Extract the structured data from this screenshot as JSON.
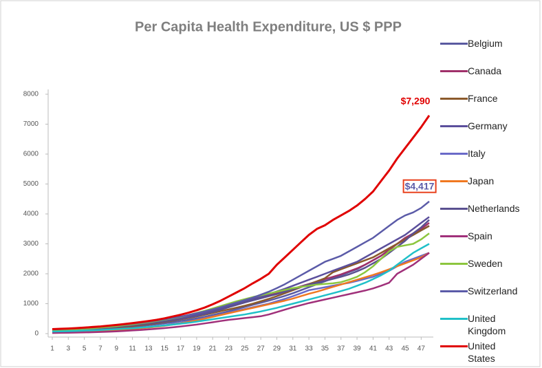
{
  "chart_data": {
    "type": "line",
    "title": "Per Capita Health Expenditure, US $ PPP",
    "x": [
      1,
      2,
      3,
      4,
      5,
      6,
      7,
      8,
      9,
      10,
      11,
      12,
      13,
      14,
      15,
      16,
      17,
      18,
      19,
      20,
      21,
      22,
      23,
      24,
      25,
      26,
      27,
      28,
      29,
      30,
      31,
      32,
      33,
      34,
      35,
      36,
      37,
      38,
      39,
      40,
      41,
      42,
      43,
      44,
      45,
      46,
      47,
      48
    ],
    "xlim": [
      1,
      48
    ],
    "xticks": [
      1,
      3,
      5,
      7,
      9,
      11,
      13,
      15,
      17,
      19,
      21,
      23,
      25,
      27,
      29,
      31,
      33,
      35,
      37,
      39,
      41,
      43,
      45,
      47
    ],
    "ylim": [
      0,
      8000
    ],
    "yticks": [
      0,
      1000,
      2000,
      3000,
      4000,
      5000,
      6000,
      7000,
      8000
    ],
    "grid": false,
    "legend": "right",
    "series": [
      {
        "name": "Belgium",
        "color": "#5a5aa0",
        "values": [
          60,
          70,
          80,
          90,
          105,
          120,
          135,
          155,
          175,
          200,
          225,
          250,
          280,
          310,
          345,
          380,
          420,
          460,
          510,
          560,
          620,
          680,
          750,
          820,
          890,
          960,
          1030,
          1100,
          1180,
          1260,
          1350,
          1450,
          1550,
          1650,
          1750,
          1850,
          1950,
          2050,
          2150,
          2300,
          2450,
          2600,
          2800,
          3000,
          3150,
          3300,
          3450,
          3600
        ]
      },
      {
        "name": "Canada",
        "color": "#a0306a",
        "values": [
          100,
          110,
          120,
          135,
          150,
          170,
          190,
          210,
          235,
          260,
          290,
          320,
          355,
          390,
          430,
          470,
          520,
          570,
          630,
          690,
          760,
          840,
          920,
          1000,
          1080,
          1150,
          1220,
          1290,
          1360,
          1430,
          1500,
          1580,
          1660,
          1740,
          1820,
          1900,
          1980,
          2080,
          2180,
          2300,
          2450,
          2600,
          2800,
          3000,
          3200,
          3350,
          3500,
          3700
        ]
      },
      {
        "name": "France",
        "color": "#8b5a2b",
        "values": [
          70,
          80,
          90,
          100,
          115,
          130,
          150,
          170,
          195,
          220,
          250,
          280,
          315,
          350,
          390,
          430,
          475,
          520,
          570,
          630,
          690,
          750,
          810,
          870,
          930,
          1000,
          1080,
          1160,
          1250,
          1350,
          1450,
          1550,
          1650,
          1750,
          1850,
          2050,
          2150,
          2250,
          2350,
          2450,
          2550,
          2700,
          2850,
          3000,
          3150,
          3300,
          3450,
          3600
        ]
      },
      {
        "name": "Germany",
        "color": "#5b4f9c",
        "values": [
          80,
          90,
          100,
          115,
          130,
          150,
          170,
          195,
          220,
          250,
          280,
          310,
          345,
          380,
          420,
          465,
          510,
          560,
          620,
          680,
          750,
          830,
          910,
          990,
          1070,
          1150,
          1230,
          1320,
          1410,
          1500,
          1600,
          1700,
          1800,
          1900,
          2000,
          2100,
          2200,
          2300,
          2400,
          2550,
          2700,
          2850,
          3000,
          3150,
          3300,
          3500,
          3700,
          3900
        ]
      },
      {
        "name": "Italy",
        "color": "#6a6ac8",
        "values": [
          50,
          55,
          60,
          70,
          80,
          90,
          100,
          115,
          130,
          150,
          170,
          195,
          220,
          250,
          280,
          320,
          360,
          410,
          460,
          520,
          580,
          640,
          700,
          760,
          820,
          880,
          940,
          1000,
          1080,
          1160,
          1250,
          1350,
          1450,
          1500,
          1550,
          1600,
          1650,
          1700,
          1760,
          1830,
          1900,
          2000,
          2100,
          2250,
          2400,
          2500,
          2600,
          2700
        ]
      },
      {
        "name": "Japan",
        "color": "#f07820",
        "values": [
          30,
          35,
          40,
          45,
          55,
          65,
          75,
          90,
          110,
          130,
          150,
          175,
          200,
          230,
          260,
          300,
          340,
          390,
          440,
          500,
          560,
          620,
          680,
          740,
          800,
          860,
          920,
          980,
          1040,
          1100,
          1170,
          1250,
          1330,
          1400,
          1480,
          1560,
          1640,
          1720,
          1800,
          1880,
          1960,
          2050,
          2150,
          2250,
          2350,
          2450,
          2550,
          2700
        ]
      },
      {
        "name": "Netherlands",
        "color": "#5a5090",
        "values": [
          90,
          100,
          110,
          125,
          140,
          160,
          180,
          200,
          225,
          250,
          280,
          310,
          340,
          375,
          410,
          450,
          490,
          540,
          590,
          650,
          720,
          800,
          880,
          960,
          1040,
          1110,
          1180,
          1250,
          1320,
          1400,
          1480,
          1560,
          1640,
          1700,
          1760,
          1830,
          1900,
          1980,
          2080,
          2200,
          2350,
          2500,
          2700,
          2900,
          3100,
          3350,
          3550,
          3800
        ]
      },
      {
        "name": "Spain",
        "color": "#a0307a",
        "values": [
          20,
          25,
          30,
          35,
          40,
          45,
          55,
          65,
          75,
          90,
          105,
          120,
          140,
          160,
          185,
          210,
          240,
          270,
          300,
          340,
          380,
          420,
          460,
          490,
          520,
          550,
          580,
          640,
          720,
          800,
          880,
          950,
          1020,
          1080,
          1140,
          1200,
          1260,
          1320,
          1380,
          1440,
          1510,
          1600,
          1700,
          2000,
          2150,
          2300,
          2500,
          2700
        ]
      },
      {
        "name": "Sweden",
        "color": "#8cc63e",
        "values": [
          110,
          120,
          130,
          145,
          160,
          180,
          200,
          225,
          250,
          280,
          310,
          345,
          380,
          420,
          465,
          510,
          560,
          620,
          690,
          760,
          840,
          920,
          1000,
          1080,
          1150,
          1220,
          1280,
          1340,
          1400,
          1460,
          1520,
          1560,
          1600,
          1640,
          1660,
          1680,
          1720,
          1800,
          1900,
          2050,
          2250,
          2500,
          2750,
          2900,
          2950,
          3000,
          3150,
          3350
        ]
      },
      {
        "name": "Switzerland",
        "color": "#5b5ba8",
        "values": [
          140,
          150,
          160,
          175,
          190,
          210,
          230,
          255,
          280,
          305,
          335,
          365,
          400,
          440,
          480,
          525,
          570,
          620,
          680,
          740,
          810,
          880,
          960,
          1040,
          1120,
          1200,
          1300,
          1400,
          1520,
          1650,
          1800,
          1950,
          2100,
          2250,
          2400,
          2500,
          2600,
          2750,
          2900,
          3050,
          3200,
          3400,
          3600,
          3800,
          3950,
          4050,
          4200,
          4417
        ]
      },
      {
        "name": "United Kingdom",
        "color": "#20c0c8",
        "values": [
          70,
          75,
          80,
          90,
          100,
          110,
          120,
          135,
          150,
          165,
          180,
          200,
          220,
          245,
          270,
          300,
          330,
          360,
          400,
          440,
          480,
          520,
          560,
          600,
          640,
          690,
          740,
          800,
          860,
          930,
          1000,
          1070,
          1140,
          1210,
          1280,
          1350,
          1420,
          1500,
          1600,
          1700,
          1820,
          1950,
          2100,
          2300,
          2500,
          2700,
          2850,
          3000
        ]
      },
      {
        "name": "United States",
        "color": "#e00000",
        "values": [
          150,
          160,
          170,
          185,
          200,
          220,
          240,
          265,
          290,
          320,
          350,
          385,
          420,
          460,
          510,
          570,
          630,
          700,
          780,
          870,
          980,
          1100,
          1240,
          1380,
          1520,
          1680,
          1830,
          2000,
          2300,
          2550,
          2800,
          3050,
          3300,
          3500,
          3620,
          3800,
          3950,
          4100,
          4280,
          4500,
          4750,
          5100,
          5450,
          5850,
          6200,
          6550,
          6900,
          7290
        ]
      }
    ],
    "annotations": [
      {
        "text": "$7,290",
        "color": "#e00000"
      },
      {
        "text": "$4,417",
        "color": "#5b5ba8",
        "border": "#e8401c"
      }
    ]
  }
}
